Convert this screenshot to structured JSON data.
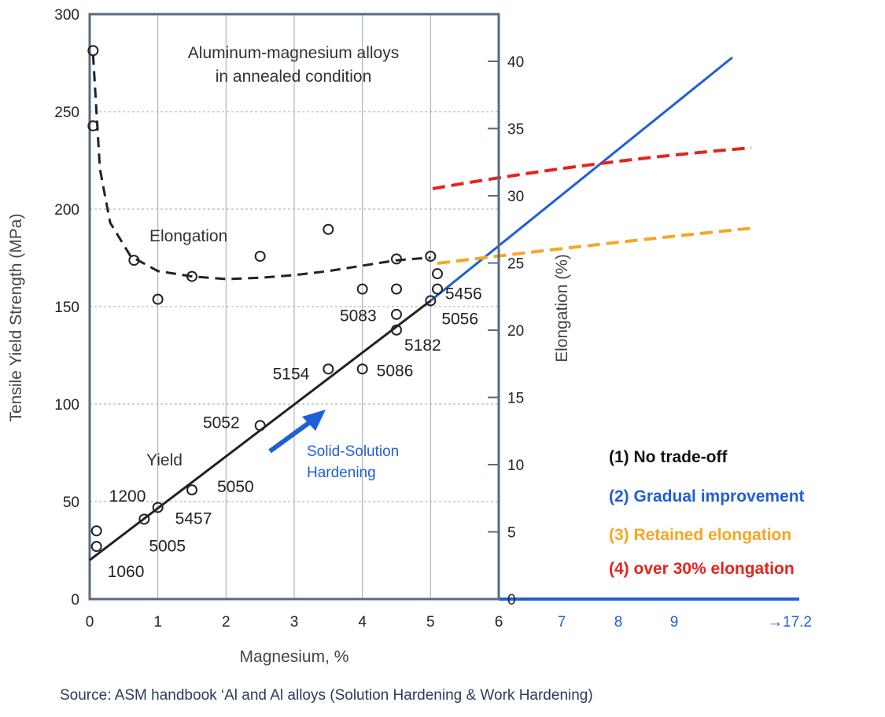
{
  "chart_data": {
    "type": "scatter",
    "annotation_title": [
      "Aluminum-magnesium alloys",
      "in annealed condition"
    ],
    "xlabel": "Magnesium, %",
    "ylabel_left": "Tensile Yield Strength (MPa)",
    "ylabel_right": "Elongation (%)",
    "x_ticks": [
      "0",
      "1",
      "2",
      "3",
      "4",
      "5",
      "6"
    ],
    "x_ticks_extended": [
      "7",
      "8",
      "9",
      "→17.2"
    ],
    "y_left_ticks": [
      "0",
      "50",
      "100",
      "150",
      "200",
      "250",
      "300"
    ],
    "y_right_ticks": [
      "0",
      "5",
      "10",
      "15",
      "20",
      "25",
      "30",
      "35",
      "40"
    ],
    "xlim": [
      0,
      6
    ],
    "ylim_left": [
      0,
      300
    ],
    "ylim_right": [
      0,
      40
    ],
    "grid": true,
    "yield_points": [
      {
        "x": 0.1,
        "y": 27,
        "label": "1060"
      },
      {
        "x": 0.1,
        "y": 35,
        "label": "1200"
      },
      {
        "x": 0.8,
        "y": 41,
        "label": "5005"
      },
      {
        "x": 1.0,
        "y": 47,
        "label": "5457"
      },
      {
        "x": 1.5,
        "y": 56,
        "label": "5050"
      },
      {
        "x": 2.5,
        "y": 89,
        "label": "5052"
      },
      {
        "x": 3.5,
        "y": 118,
        "label": "5154"
      },
      {
        "x": 4.0,
        "y": 118,
        "label": "5086"
      },
      {
        "x": 4.0,
        "y": 159,
        "label": "5083"
      },
      {
        "x": 4.5,
        "y": 138,
        "label": "5182"
      },
      {
        "x": 5.0,
        "y": 153,
        "label": "5056"
      },
      {
        "x": 5.1,
        "y": 159,
        "label": "5456"
      }
    ],
    "yield_extra_points": [
      {
        "x": 4.5,
        "y": 146
      },
      {
        "x": 4.5,
        "y": 159
      }
    ],
    "elongation_points": [
      {
        "x": 0.05,
        "y": 40.8
      },
      {
        "x": 0.05,
        "y": 35.2
      },
      {
        "x": 0.65,
        "y": 25.2
      },
      {
        "x": 1.0,
        "y": 22.3
      },
      {
        "x": 1.5,
        "y": 24.0
      },
      {
        "x": 2.5,
        "y": 25.5
      },
      {
        "x": 3.5,
        "y": 27.5
      },
      {
        "x": 4.5,
        "y": 25.3
      },
      {
        "x": 5.0,
        "y": 25.5
      },
      {
        "x": 5.1,
        "y": 24.2
      }
    ],
    "series": [
      {
        "name": "Yield",
        "style": "solid",
        "color": "#222222",
        "x": [
          0,
          5.0
        ],
        "y": [
          20,
          153
        ]
      },
      {
        "name": "Elongation",
        "style": "dashed",
        "color": "#222222",
        "x": [
          0.05,
          0.15,
          0.3,
          0.6,
          1.0,
          1.5,
          2.0,
          2.5,
          3.0,
          3.5,
          4.0,
          4.5,
          5.0
        ],
        "y": [
          40.5,
          32,
          28,
          25.5,
          24.4,
          24.0,
          23.8,
          23.9,
          24.1,
          24.4,
          24.8,
          25.2,
          25.4
        ]
      }
    ],
    "label_yield": "Yield",
    "label_elongation": "Elongation",
    "arrow_label": [
      "Solid-Solution",
      "Hardening"
    ],
    "legend": [
      {
        "text": "(1) No trade-off",
        "color": "#111111"
      },
      {
        "text": "(2) Gradual improvement",
        "color": "#1f5fd6"
      },
      {
        "text": "(3) Retained elongation",
        "color": "#f5a623"
      },
      {
        "text": "(4) over 30% elongation",
        "color": "#e8231c"
      }
    ],
    "colors": {
      "blue": "#1f5fd6",
      "orange": "#f5a623",
      "red": "#e8231c",
      "frame": "#5a6b7f",
      "grid": "#9aa8bb"
    }
  },
  "source": "Source: ASM handbook ‘Al and Al alloys (Solution Hardening & Work Hardening)"
}
